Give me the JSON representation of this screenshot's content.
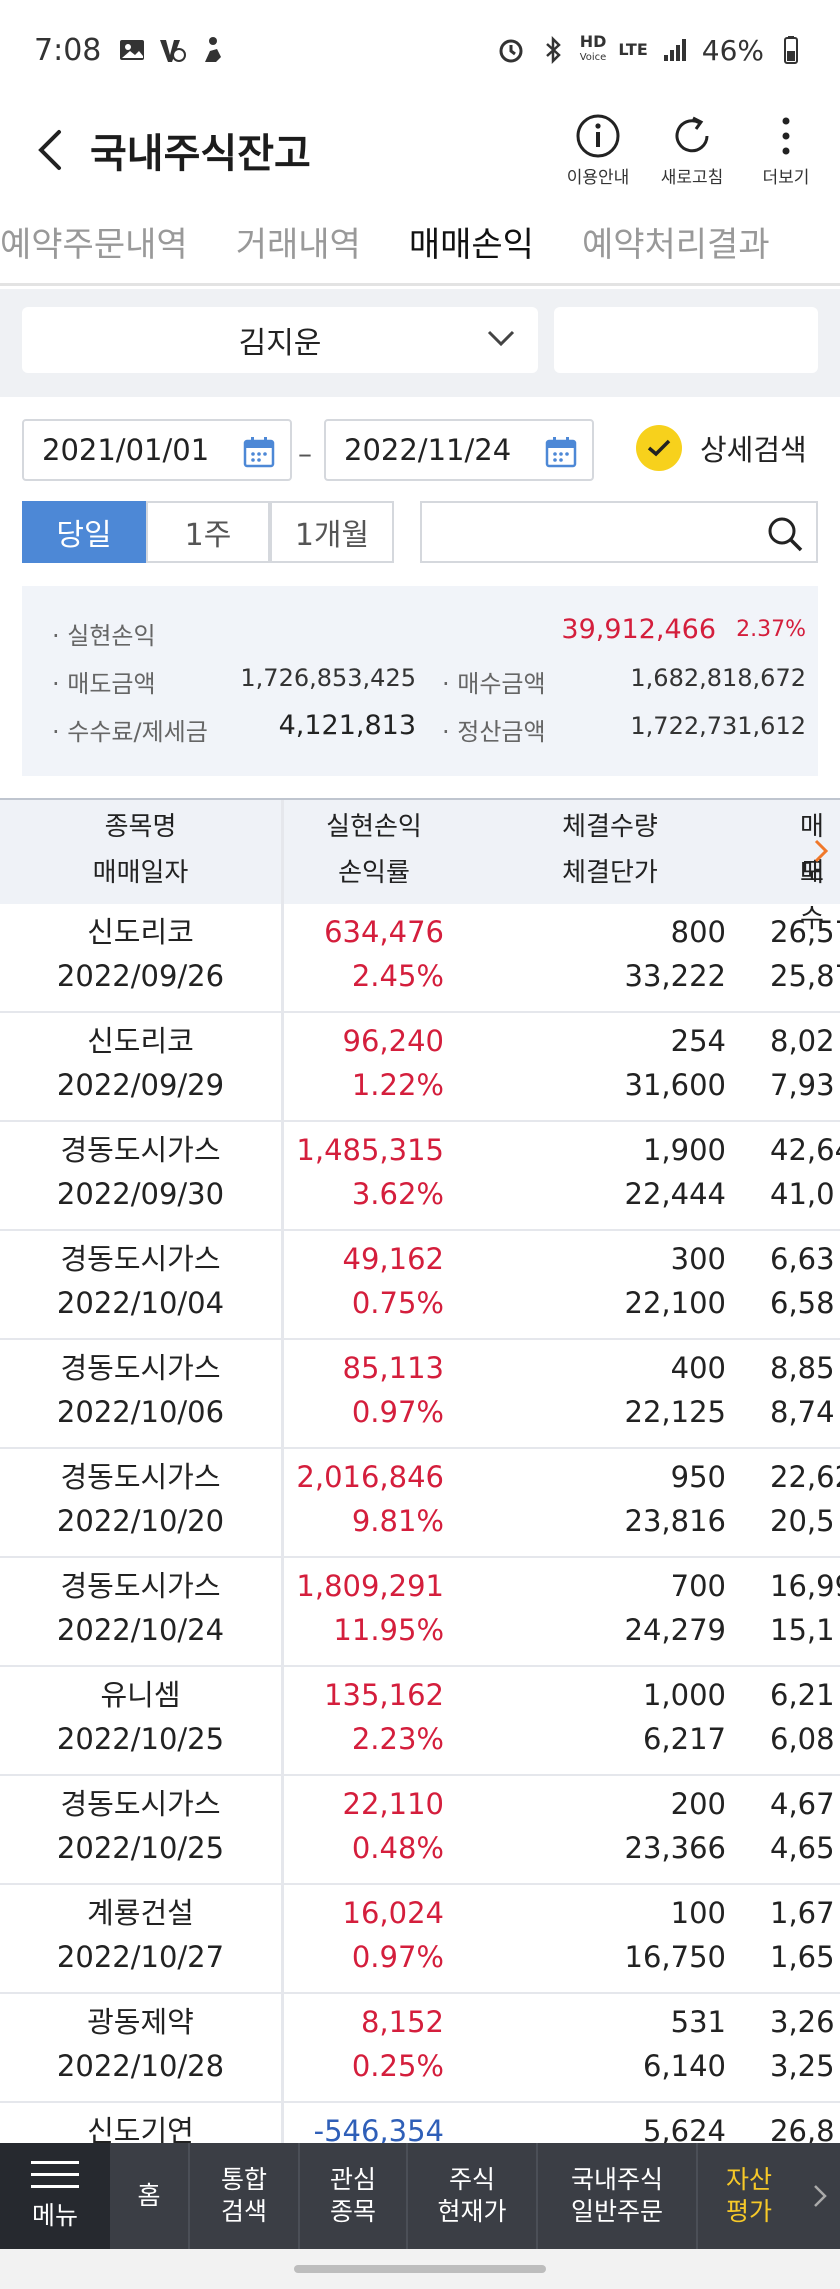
{
  "status_bar": {
    "time": "7:08",
    "battery": "46%",
    "network_hd": "HD",
    "network_voice": "Voice",
    "network_lte": "LTE"
  },
  "header": {
    "title": "국내주식잔고",
    "actions": [
      {
        "label": "이용안내",
        "icon": "info-icon"
      },
      {
        "label": "새로고침",
        "icon": "refresh-icon"
      },
      {
        "label": "더보기",
        "icon": "more-vertical-icon"
      }
    ]
  },
  "tabs": [
    {
      "label": "예약주문내역",
      "active": false
    },
    {
      "label": "거래내역",
      "active": false
    },
    {
      "label": "매매손익",
      "active": true
    },
    {
      "label": "예약처리결과",
      "active": false
    }
  ],
  "account": {
    "name": "김지운"
  },
  "date_range": {
    "start": "2021/01/01",
    "separator": "–",
    "end": "2022/11/24"
  },
  "detail_search": {
    "label": "상세검색",
    "checked": true
  },
  "periods": [
    {
      "label": "당일",
      "active": true
    },
    {
      "label": "1주",
      "active": false
    },
    {
      "label": "1개월",
      "active": false
    }
  ],
  "summary": {
    "realized_label": "· 실현손익",
    "realized_value": "39,912,466",
    "realized_rate": "2.37%",
    "sell_label": "· 매도금액",
    "sell_value": "1,726,853,425",
    "buy_label": "· 매수금액",
    "buy_value": "1,682,818,672",
    "fee_label": "· 수수료/제세금",
    "fee_value": "4,121,813",
    "settle_label": "· 정산금액",
    "settle_value": "1,722,731,612"
  },
  "table": {
    "headers": {
      "name_top": "종목명",
      "name_bottom": "매매일자",
      "profit_top": "실현손익",
      "profit_bottom": "손익률",
      "qty_top": "체결수량",
      "qty_bottom": "체결단가",
      "sell_top": "매도",
      "sell_bottom": "매수"
    },
    "rows": [
      {
        "name": "신도리코",
        "date": "2022/09/26",
        "profit": "634,476",
        "rate": "2.45%",
        "qty": "800",
        "price": "33,222",
        "sell": "26,57",
        "buy": "25,87",
        "negative": false
      },
      {
        "name": "신도리코",
        "date": "2022/09/29",
        "profit": "96,240",
        "rate": "1.22%",
        "qty": "254",
        "price": "31,600",
        "sell": "8,02",
        "buy": "7,93",
        "negative": false
      },
      {
        "name": "경동도시가스",
        "date": "2022/09/30",
        "profit": "1,485,315",
        "rate": "3.62%",
        "qty": "1,900",
        "price": "22,444",
        "sell": "42,64",
        "buy": "41,0",
        "negative": false
      },
      {
        "name": "경동도시가스",
        "date": "2022/10/04",
        "profit": "49,162",
        "rate": "0.75%",
        "qty": "300",
        "price": "22,100",
        "sell": "6,63",
        "buy": "6,58",
        "negative": false
      },
      {
        "name": "경동도시가스",
        "date": "2022/10/06",
        "profit": "85,113",
        "rate": "0.97%",
        "qty": "400",
        "price": "22,125",
        "sell": "8,85",
        "buy": "8,74",
        "negative": false
      },
      {
        "name": "경동도시가스",
        "date": "2022/10/20",
        "profit": "2,016,846",
        "rate": "9.81%",
        "qty": "950",
        "price": "23,816",
        "sell": "22,62",
        "buy": "20,5",
        "negative": false
      },
      {
        "name": "경동도시가스",
        "date": "2022/10/24",
        "profit": "1,809,291",
        "rate": "11.95%",
        "qty": "700",
        "price": "24,279",
        "sell": "16,99",
        "buy": "15,1",
        "negative": false
      },
      {
        "name": "유니셈",
        "date": "2022/10/25",
        "profit": "135,162",
        "rate": "2.23%",
        "qty": "1,000",
        "price": "6,217",
        "sell": "6,21",
        "buy": "6,08",
        "negative": false
      },
      {
        "name": "경동도시가스",
        "date": "2022/10/25",
        "profit": "22,110",
        "rate": "0.48%",
        "qty": "200",
        "price": "23,366",
        "sell": "4,67",
        "buy": "4,65",
        "negative": false
      },
      {
        "name": "계룡건설",
        "date": "2022/10/27",
        "profit": "16,024",
        "rate": "0.97%",
        "qty": "100",
        "price": "16,750",
        "sell": "1,67",
        "buy": "1,65",
        "negative": false
      },
      {
        "name": "광동제약",
        "date": "2022/10/28",
        "profit": "8,152",
        "rate": "0.25%",
        "qty": "531",
        "price": "6,140",
        "sell": "3,26",
        "buy": "3,25",
        "negative": false
      },
      {
        "name": "신도기연",
        "date": "",
        "profit": "-546,354",
        "rate": "",
        "qty": "5,624",
        "price": "",
        "sell": "26,8",
        "buy": "",
        "negative": true
      }
    ]
  },
  "bottom_nav": {
    "menu_label": "메뉴",
    "items": [
      {
        "line1": "홈",
        "line2": "",
        "active": false
      },
      {
        "line1": "통합",
        "line2": "검색",
        "active": false
      },
      {
        "line1": "관심",
        "line2": "종목",
        "active": false
      },
      {
        "line1": "주식",
        "line2": "현재가",
        "active": false
      },
      {
        "line1": "국내주식",
        "line2": "일반주문",
        "active": false
      },
      {
        "line1": "자산",
        "line2": "평가",
        "active": true
      }
    ]
  },
  "colors": {
    "accent_blue": "#4d88d6",
    "profit_red": "#d41e3c",
    "loss_blue": "#2f5fb8",
    "check_yellow": "#f7d11c",
    "nav_active": "#f7c928"
  }
}
